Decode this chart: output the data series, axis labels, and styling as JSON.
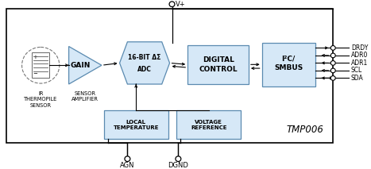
{
  "fig_width": 4.67,
  "fig_height": 2.13,
  "dpi": 100,
  "bg_color": "#ffffff",
  "block_fill": "#d6e8f7",
  "block_edge": "#5a8ab0",
  "line_color": "#555555",
  "text_color": "#000000",
  "title_text": "TMP006",
  "vplus_label": "V+",
  "agn_label": "AGN",
  "dgnd_label": "DGND",
  "output_pins": [
    "DRDY",
    "ADR0",
    "ADR1",
    "SCL",
    "SDA"
  ],
  "pin_arrows": [
    "out",
    "in",
    "in",
    "in",
    "inout"
  ]
}
